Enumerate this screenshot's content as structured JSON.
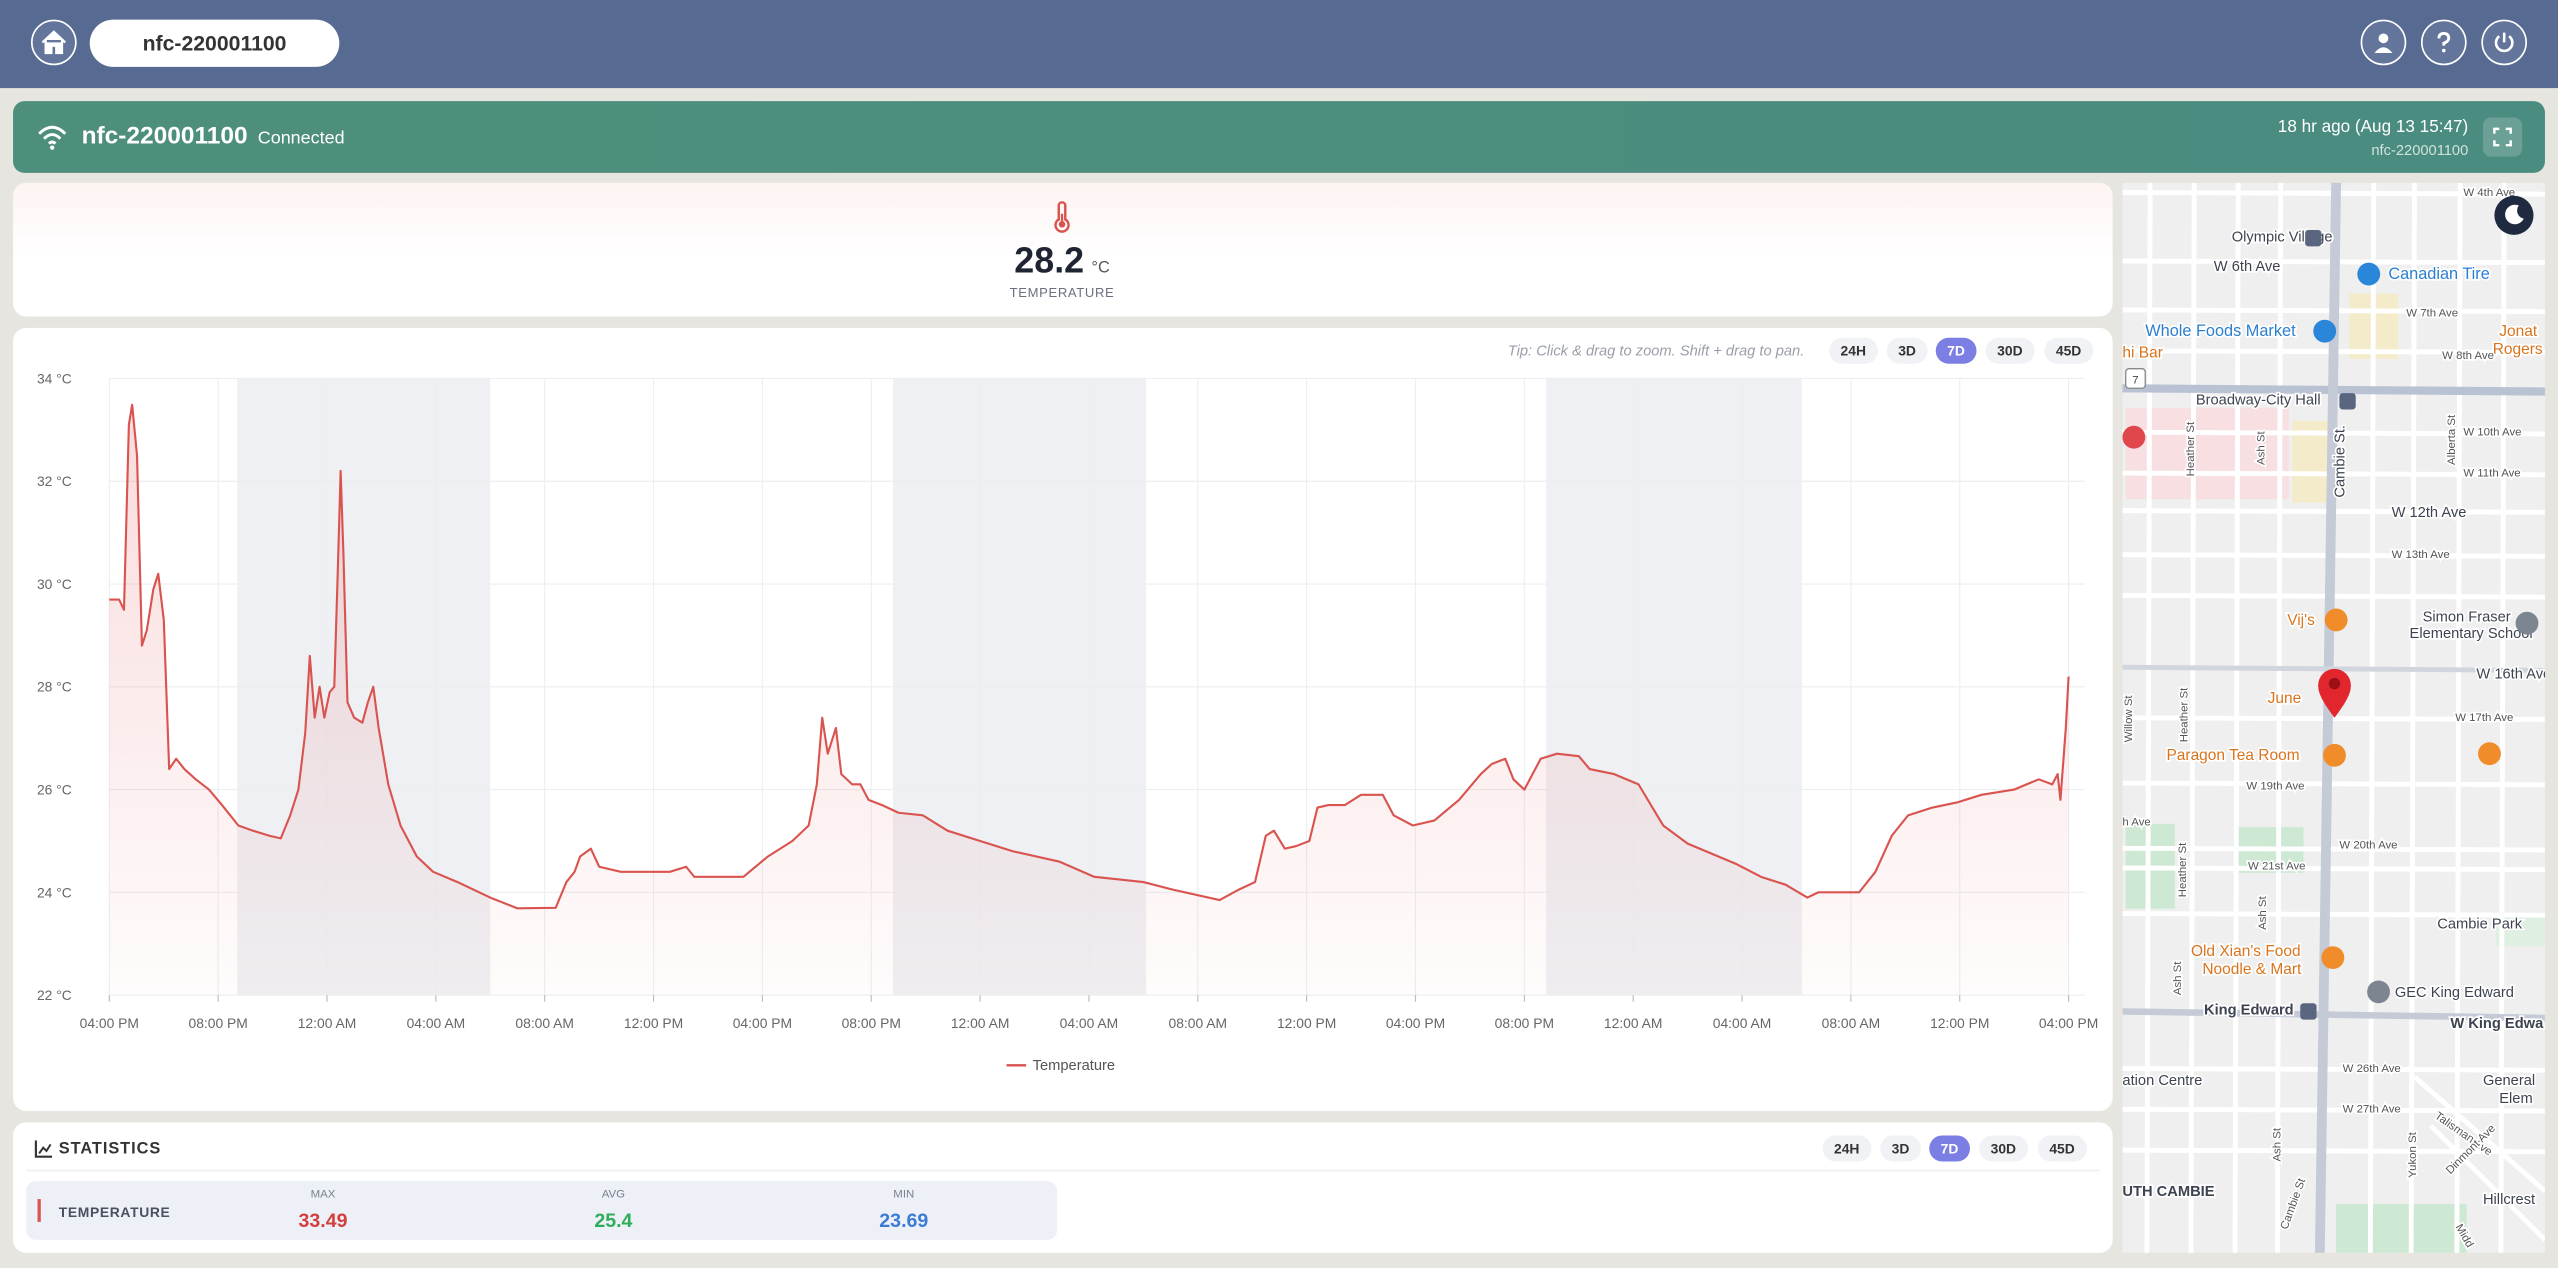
{
  "header": {
    "device_select": "nfc-220001100"
  },
  "status": {
    "device_name": "nfc-220001100",
    "state": "Connected",
    "last_seen": "18 hr ago (Aug 13 15:47)",
    "device_id": "nfc-220001100"
  },
  "current": {
    "value": 28.2,
    "unit": "°C",
    "label": "TEMPERATURE"
  },
  "chart_card": {
    "tip": "Tip: Click & drag to zoom. Shift + drag to pan.",
    "range_buttons": [
      "24H",
      "3D",
      "7D",
      "30D",
      "45D"
    ],
    "active_range": "7D"
  },
  "chart_data": {
    "type": "line",
    "x": [
      0,
      0.36,
      0.54,
      0.72,
      0.84,
      1.02,
      1.2,
      1.38,
      1.62,
      1.8,
      2.0,
      2.2,
      2.46,
      2.76,
      3.18,
      3.66,
      4.14,
      4.74,
      5.28,
      5.88,
      6.3,
      6.65,
      6.95,
      7.2,
      7.37,
      7.55,
      7.73,
      7.9,
      8.1,
      8.27,
      8.4,
      8.5,
      8.6,
      8.75,
      9.0,
      9.3,
      9.5,
      9.7,
      9.9,
      10.25,
      10.7,
      11.3,
      11.9,
      12.8,
      14.0,
      15.0,
      16.4,
      16.8,
      17.1,
      17.3,
      17.7,
      18.0,
      18.8,
      20.6,
      21.2,
      21.5,
      23.3,
      24.2,
      25.1,
      25.7,
      26.0,
      26.2,
      26.4,
      26.7,
      26.9,
      27.3,
      27.6,
      27.9,
      28.4,
      29.0,
      29.9,
      30.8,
      32.0,
      33.2,
      34.9,
      36.2,
      38.0,
      39.1,
      40.8,
      41.5,
      42.1,
      42.5,
      42.8,
      43.2,
      43.6,
      44.1,
      44.4,
      44.8,
      45.4,
      46.0,
      46.8,
      47.2,
      47.9,
      48.7,
      49.6,
      50.4,
      50.8,
      51.3,
      51.6,
      52.0,
      52.6,
      53.2,
      54.0,
      54.4,
      55.3,
      56.2,
      57.1,
      58.0,
      58.9,
      59.8,
      60.7,
      61.6,
      62.4,
      62.8,
      64.3,
      64.9,
      65.5,
      66.1,
      67.0,
      67.9,
      68.8,
      70.0,
      70.9,
      71.4,
      71.6,
      71.7,
      71.9,
      72.0
    ],
    "series": [
      {
        "name": "Temperature",
        "color": "#d9534f",
        "values": [
          29.7,
          29.7,
          29.5,
          33.1,
          33.49,
          32.5,
          28.8,
          29.1,
          29.9,
          30.2,
          29.3,
          26.4,
          26.6,
          26.4,
          26.2,
          26.0,
          25.7,
          25.3,
          25.2,
          25.1,
          25.05,
          25.5,
          26.0,
          27.1,
          28.6,
          27.4,
          28.0,
          27.4,
          27.9,
          28.0,
          30.3,
          32.2,
          30.6,
          27.7,
          27.4,
          27.3,
          27.7,
          28.0,
          27.2,
          26.1,
          25.3,
          24.7,
          24.4,
          24.2,
          23.9,
          23.69,
          23.7,
          24.2,
          24.4,
          24.7,
          24.85,
          24.5,
          24.4,
          24.4,
          24.5,
          24.3,
          24.3,
          24.7,
          25.0,
          25.3,
          26.1,
          27.4,
          26.7,
          27.2,
          26.3,
          26.1,
          26.1,
          25.8,
          25.7,
          25.55,
          25.5,
          25.2,
          25.0,
          24.8,
          24.6,
          24.3,
          24.2,
          24.05,
          23.85,
          24.05,
          24.2,
          25.1,
          25.2,
          24.85,
          24.9,
          25.0,
          25.65,
          25.7,
          25.7,
          25.9,
          25.9,
          25.5,
          25.3,
          25.4,
          25.8,
          26.3,
          26.5,
          26.6,
          26.2,
          26.0,
          26.6,
          26.7,
          26.65,
          26.4,
          26.3,
          26.1,
          25.3,
          24.95,
          24.75,
          24.55,
          24.3,
          24.15,
          23.9,
          24.0,
          24.0,
          24.4,
          25.1,
          25.5,
          25.65,
          25.75,
          25.9,
          26.0,
          26.2,
          26.1,
          26.3,
          25.8,
          27.2,
          28.2
        ]
      }
    ],
    "night_bands": [
      [
        4.7,
        14.0
      ],
      [
        28.8,
        38.1
      ],
      [
        52.8,
        62.2
      ]
    ],
    "xlim": [
      0,
      72
    ],
    "xticks": [
      {
        "value": 0,
        "label": "04:00 PM"
      },
      {
        "value": 4,
        "label": "08:00 PM"
      },
      {
        "value": 8,
        "label": "12:00 AM"
      },
      {
        "value": 12,
        "label": "04:00 AM"
      },
      {
        "value": 16,
        "label": "08:00 AM"
      },
      {
        "value": 20,
        "label": "12:00 PM"
      },
      {
        "value": 24,
        "label": "04:00 PM"
      },
      {
        "value": 28,
        "label": "08:00 PM"
      },
      {
        "value": 32,
        "label": "12:00 AM"
      },
      {
        "value": 36,
        "label": "04:00 AM"
      },
      {
        "value": 40,
        "label": "08:00 AM"
      },
      {
        "value": 44,
        "label": "12:00 PM"
      },
      {
        "value": 48,
        "label": "04:00 PM"
      },
      {
        "value": 52,
        "label": "08:00 PM"
      },
      {
        "value": 56,
        "label": "12:00 AM"
      },
      {
        "value": 60,
        "label": "04:00 AM"
      },
      {
        "value": 64,
        "label": "08:00 AM"
      },
      {
        "value": 68,
        "label": "12:00 PM"
      },
      {
        "value": 72,
        "label": "04:00 PM"
      }
    ],
    "ylim": [
      22,
      34
    ],
    "yticks": [
      {
        "value": 22,
        "label": "22 °C"
      },
      {
        "value": 24,
        "label": "24 °C"
      },
      {
        "value": 26,
        "label": "26 °C"
      },
      {
        "value": 28,
        "label": "28 °C"
      },
      {
        "value": 30,
        "label": "30 °C"
      },
      {
        "value": 32,
        "label": "32 °C"
      },
      {
        "value": 34,
        "label": "34 °C"
      }
    ],
    "grid": true,
    "legend": "bottom"
  },
  "statistics": {
    "title": "STATISTICS",
    "range_buttons": [
      "24H",
      "3D",
      "7D",
      "30D",
      "45D"
    ],
    "active_range": "7D",
    "row_label": "TEMPERATURE",
    "metrics": [
      {
        "label": "MAX",
        "value": 33.49,
        "color": "#d23f3f"
      },
      {
        "label": "AVG",
        "value": 25.4,
        "color": "#2fae5a"
      },
      {
        "label": "MIN",
        "value": 23.69,
        "color": "#3a7bd5"
      }
    ]
  },
  "map": {
    "route": "7",
    "labels": [
      "W 4th Ave",
      "Olympic Village",
      "W 6th Ave",
      "Canadian Tire",
      "W 7th Ave",
      "Whole Foods Market",
      "Jonat",
      "Rogers",
      "hi Bar",
      "W 8th Ave",
      "Broadway-City Hall",
      "W 10th Ave",
      "W 11th Ave",
      "Heather St",
      "Ash St",
      "Cambie St.",
      "Alberta St",
      "W 12th Ave",
      "W 13th Ave",
      "Vij's",
      "Simon Fraser",
      "Elementary School",
      "W 16th Ave",
      "June",
      "W 17th Ave",
      "Willow St",
      "Heather St",
      "Paragon Tea Room",
      "W 19th Ave",
      "W 20th Ave",
      "h Ave",
      "W 21st Ave",
      "Heather St",
      "Ash St",
      "Cambie Park",
      "Old Xian's Food",
      "Noodle & Mart",
      "GEC King Edward",
      "Ash St",
      "King Edward",
      "W King Edwa",
      "W 26th Ave",
      "ation Centre",
      "General",
      "Elem",
      "W 27th Ave",
      "Talisman Ave",
      "Dinmont Ave",
      "Ash St",
      "Yukon St",
      "UTH CAMBIE",
      "Cambie St",
      "Hillcrest",
      "Midd"
    ]
  }
}
